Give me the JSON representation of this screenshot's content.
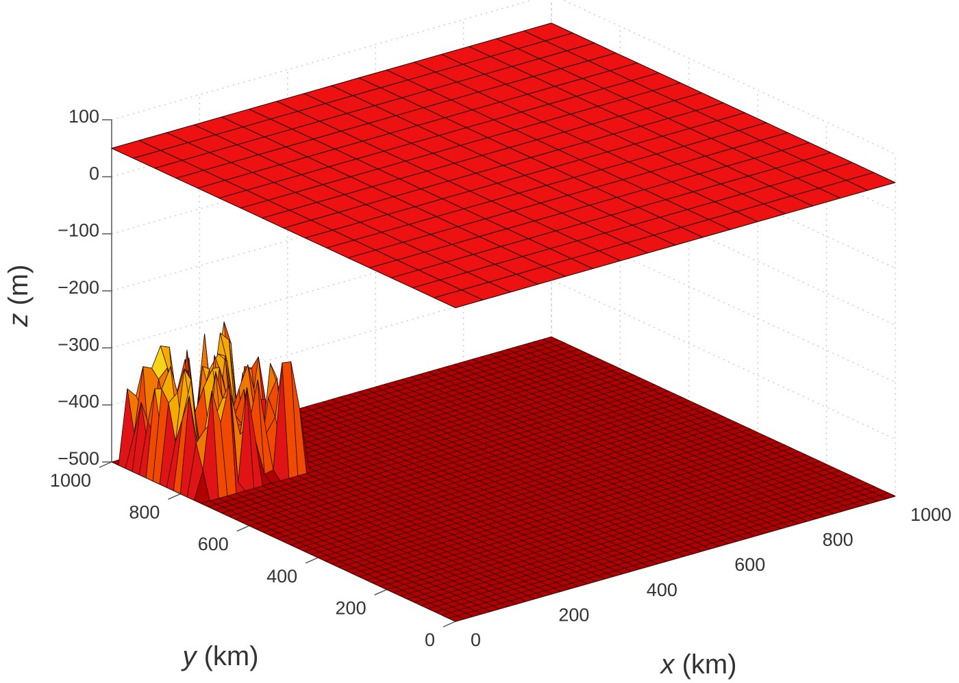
{
  "chart_data": {
    "type": "surface3d",
    "title": "",
    "xlabel": {
      "var": "x",
      "unit": " (km)"
    },
    "ylabel": {
      "var": "y",
      "unit": " (km)"
    },
    "zlabel": {
      "var": "z",
      "unit": " (m)"
    },
    "xlim": [
      0,
      1000
    ],
    "ylim": [
      0,
      1000
    ],
    "zlim": [
      -500,
      100
    ],
    "xticks": [
      0,
      200,
      400,
      600,
      800,
      1000
    ],
    "yticks": [
      0,
      200,
      400,
      600,
      800,
      1000
    ],
    "zticks": [
      -500,
      -400,
      -300,
      -200,
      -100,
      0,
      100
    ],
    "xtick_labels": [
      "0",
      "200",
      "400",
      "600",
      "800",
      "1000"
    ],
    "ytick_labels": [
      "0",
      "200",
      "400",
      "600",
      "800",
      "1000"
    ],
    "ztick_labels": [
      "−500",
      "−400",
      "−300",
      "−200",
      "−100",
      "0",
      "100"
    ],
    "grid": true,
    "colormap": "hot",
    "surfaces": [
      {
        "role": "upper-surface",
        "z": 50,
        "grid_size": 16,
        "color": "#ee1111"
      },
      {
        "role": "bed-surface",
        "z": -500,
        "grid_size": 50,
        "color": "#cc1111",
        "bump": {
          "x_range": [
            0,
            250
          ],
          "y_range": [
            750,
            1000
          ],
          "z_range": [
            -500,
            -300
          ],
          "seed": 7
        }
      }
    ],
    "colors": [
      "#b00000",
      "#e01414",
      "#f04a00",
      "#f07800",
      "#f5aa00",
      "#f7d31a"
    ]
  }
}
